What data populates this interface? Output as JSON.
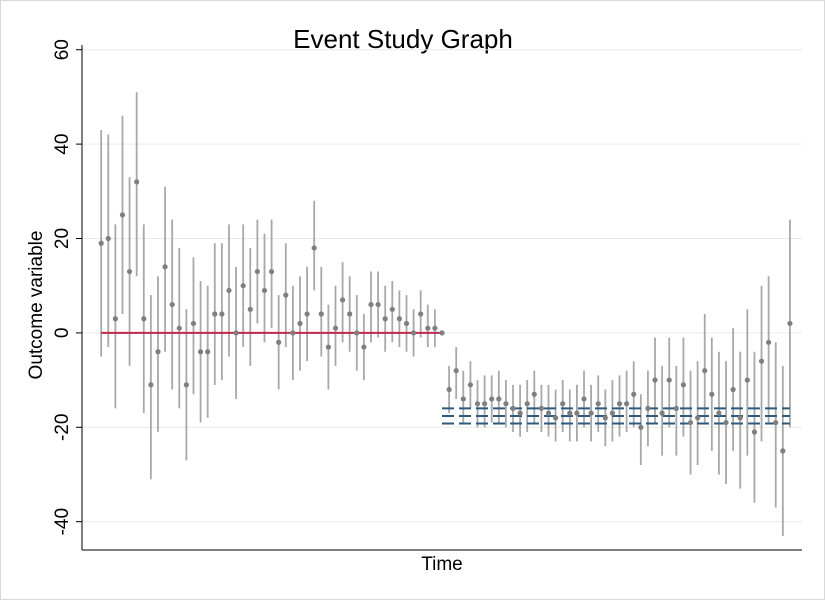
{
  "chart_data": {
    "type": "scatter",
    "title": "Event Study Graph",
    "x_label": "Time",
    "y_label": "Outcome variable",
    "xlim": [
      -50.7,
      50.7
    ],
    "ylim": [
      -46,
      61
    ],
    "yticks": [
      -40,
      -20,
      0,
      20,
      40,
      60
    ],
    "grid": true,
    "marker_color": "#7f7f7f",
    "ci_color": "#a8a8a8",
    "series": [
      {
        "x": [
          -48,
          -47,
          -46,
          -45,
          -44,
          -43,
          -42,
          -41,
          -40,
          -39,
          -38,
          -37,
          -36,
          -35,
          -34,
          -33,
          -32,
          -31,
          -30,
          -29,
          -28,
          -27,
          -26,
          -25,
          -24,
          -23,
          -22,
          -21,
          -20,
          -19,
          -18,
          -17,
          -16,
          -15,
          -14,
          -13,
          -12,
          -11,
          -10,
          -9,
          -8,
          -7,
          -6,
          -5,
          -4,
          -3,
          -2,
          -1,
          0,
          1,
          2,
          3,
          4,
          5,
          6,
          7,
          8,
          9,
          10,
          11,
          12,
          13,
          14,
          15,
          16,
          17,
          18,
          19,
          20,
          21,
          22,
          23,
          24,
          25,
          26,
          27,
          28,
          29,
          30,
          31,
          32,
          33,
          34,
          35,
          36,
          37,
          38,
          39,
          40,
          41,
          42,
          43,
          44,
          45,
          46,
          47,
          48,
          49
        ],
        "values": [
          19,
          20,
          3,
          25,
          13,
          32,
          3,
          -11,
          -4,
          14,
          6,
          1,
          -11,
          2,
          -4,
          -4,
          4,
          4,
          9,
          0,
          10,
          5,
          13,
          9,
          13,
          -2,
          8,
          0,
          2,
          4,
          18,
          4,
          -3,
          1,
          7,
          4,
          0,
          -3,
          6,
          6,
          3,
          5,
          3,
          2,
          0,
          4,
          1,
          1,
          0,
          -12,
          -8,
          -14,
          -11,
          -15,
          -15,
          -14,
          -14,
          -15,
          -16,
          -17,
          -15,
          -13,
          -16,
          -17,
          -18,
          -15,
          -17,
          -17,
          -14,
          -17,
          -15,
          -18,
          -17,
          -15,
          -15,
          -13,
          -20,
          -16,
          -10,
          -17,
          -10,
          -16,
          -11,
          -19,
          -18,
          -8,
          -13,
          -17,
          -19,
          -12,
          -18,
          -10,
          -21,
          -6,
          -2,
          -19,
          -25,
          2
        ],
        "lower": [
          -5,
          -3,
          -16,
          4,
          -7,
          12,
          -17,
          -31,
          -21,
          -4,
          -12,
          -16,
          -27,
          -13,
          -19,
          -18,
          -11,
          -10,
          -5,
          -14,
          -3,
          -7,
          2,
          -2,
          1,
          -12,
          -3,
          -10,
          -8,
          -6,
          9,
          -5,
          -12,
          -7,
          -2,
          -4,
          -8,
          -10,
          -2,
          -1,
          -4,
          -2,
          -3,
          -4,
          -5,
          -1,
          -3,
          -3,
          0,
          -17,
          -14,
          -19,
          -16,
          -20,
          -20,
          -19,
          -19,
          -20,
          -21,
          -22,
          -21,
          -19,
          -21,
          -22,
          -23,
          -21,
          -23,
          -23,
          -20,
          -23,
          -21,
          -24,
          -23,
          -22,
          -21,
          -20,
          -28,
          -24,
          -19,
          -26,
          -20,
          -26,
          -22,
          -30,
          -28,
          -19,
          -25,
          -30,
          -32,
          -25,
          -33,
          -26,
          -36,
          -23,
          -19,
          -37,
          -43,
          -20
        ],
        "upper": [
          43,
          42,
          23,
          46,
          33,
          51,
          23,
          8,
          12,
          31,
          24,
          18,
          5,
          16,
          11,
          10,
          19,
          19,
          23,
          14,
          23,
          18,
          24,
          21,
          24,
          8,
          19,
          10,
          12,
          14,
          28,
          14,
          6,
          10,
          15,
          12,
          8,
          4,
          13,
          13,
          10,
          11,
          9,
          8,
          5,
          9,
          6,
          5,
          0,
          -7,
          -3,
          -8,
          -6,
          -10,
          -9,
          -9,
          -8,
          -10,
          -11,
          -11,
          -10,
          -8,
          -11,
          -11,
          -12,
          -10,
          -12,
          -11,
          -8,
          -11,
          -9,
          -12,
          -10,
          -9,
          -8,
          -6,
          -13,
          -8,
          -1,
          -7,
          -1,
          -7,
          -1,
          -8,
          -6,
          4,
          -1,
          -4,
          -6,
          1,
          -4,
          5,
          -4,
          10,
          12,
          -2,
          -7,
          24
        ]
      }
    ],
    "hlines": [
      {
        "value": 0,
        "from": -48,
        "to": 0,
        "color": "#c0284a",
        "style": "solid"
      },
      {
        "value": -16,
        "from": 0,
        "to": 49,
        "color": "#2e5a7e",
        "style": "dashed"
      },
      {
        "value": -17.6,
        "from": 0,
        "to": 49,
        "color": "#2e5a7e",
        "style": "dashed"
      },
      {
        "value": -19.2,
        "from": 0,
        "to": 49,
        "color": "#2e5a7e",
        "style": "dashed"
      }
    ]
  }
}
